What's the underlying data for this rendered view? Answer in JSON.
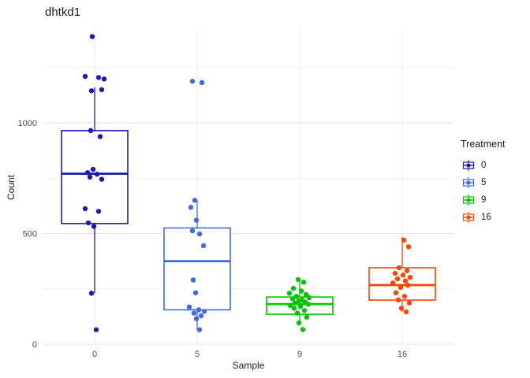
{
  "title": "dhtkd1",
  "axes": {
    "x_label": "Sample",
    "y_label": "Count"
  },
  "legend": {
    "title": "Treatment"
  },
  "colors": {
    "background": "#ffffff",
    "grid_major": "#e3e3e3",
    "grid_minor": "#ebebeb",
    "tick_text": "#4d4d4d",
    "title_text": "#1a1a1a"
  },
  "chart_data": {
    "type": "boxplot",
    "title": "dhtkd1",
    "xlabel": "Sample",
    "ylabel": "Count",
    "ylim": [
      0,
      1420
    ],
    "yticks": [
      0,
      500,
      1000
    ],
    "yticks_minor": [
      250,
      750,
      1250
    ],
    "grid": true,
    "legend_title": "Treatment",
    "legend_position": "right",
    "categories": [
      "0",
      "5",
      "9",
      "16"
    ],
    "groups": [
      {
        "label": "0",
        "color": "#1c1cb0",
        "box": {
          "whisker_low": 230,
          "q1": 545,
          "median": 770,
          "q3": 965,
          "whisker_high": 1160
        },
        "points": [
          [
            -3,
            1390
          ],
          [
            -12,
            1210
          ],
          [
            5,
            1205
          ],
          [
            12,
            1198
          ],
          [
            9,
            1150
          ],
          [
            -4,
            1145
          ],
          [
            -5,
            965
          ],
          [
            7,
            938
          ],
          [
            -2,
            790
          ],
          [
            -9,
            775
          ],
          [
            3,
            768
          ],
          [
            -6,
            755
          ],
          [
            9,
            745
          ],
          [
            -12,
            612
          ],
          [
            5,
            600
          ],
          [
            -8,
            548
          ],
          [
            -1,
            532
          ],
          [
            -4,
            230
          ],
          [
            2,
            65
          ]
        ]
      },
      {
        "label": "5",
        "color": "#4169e1",
        "box": {
          "whisker_low": 65,
          "q1": 155,
          "median": 375,
          "q3": 525,
          "whisker_high": 650
        },
        "points": [
          [
            -6,
            1188
          ],
          [
            6,
            1182
          ],
          [
            -3,
            650
          ],
          [
            -8,
            618
          ],
          [
            -1,
            560
          ],
          [
            -6,
            512
          ],
          [
            3,
            498
          ],
          [
            8,
            445
          ],
          [
            -5,
            290
          ],
          [
            -2,
            232
          ],
          [
            -10,
            168
          ],
          [
            2,
            155
          ],
          [
            9,
            148
          ],
          [
            -4,
            140
          ],
          [
            5,
            128
          ],
          [
            -1,
            115
          ],
          [
            3,
            65
          ]
        ]
      },
      {
        "label": "9",
        "color": "#00c500",
        "box": {
          "whisker_low": 96,
          "q1": 135,
          "median": 181,
          "q3": 213,
          "whisker_high": 292
        },
        "points": [
          [
            -2,
            292
          ],
          [
            5,
            280
          ],
          [
            -8,
            252
          ],
          [
            2,
            240
          ],
          [
            -13,
            230
          ],
          [
            8,
            224
          ],
          [
            -4,
            216
          ],
          [
            12,
            210
          ],
          [
            -9,
            205
          ],
          [
            3,
            200
          ],
          [
            -1,
            196
          ],
          [
            7,
            190
          ],
          [
            -6,
            186
          ],
          [
            11,
            180
          ],
          [
            -12,
            175
          ],
          [
            1,
            170
          ],
          [
            -7,
            162
          ],
          [
            6,
            152
          ],
          [
            -3,
            140
          ],
          [
            9,
            122
          ],
          [
            -1,
            96
          ],
          [
            4,
            66
          ]
        ]
      },
      {
        "label": "16",
        "color": "#ff4500",
        "box": {
          "whisker_low": 146,
          "q1": 199,
          "median": 267,
          "q3": 345,
          "whisker_high": 484
        },
        "points": [
          [
            2,
            470
          ],
          [
            8,
            440
          ],
          [
            -4,
            345
          ],
          [
            6,
            332
          ],
          [
            -9,
            320
          ],
          [
            1,
            312
          ],
          [
            10,
            302
          ],
          [
            -6,
            295
          ],
          [
            4,
            286
          ],
          [
            -12,
            276
          ],
          [
            7,
            266
          ],
          [
            -2,
            256
          ],
          [
            -8,
            232
          ],
          [
            3,
            216
          ],
          [
            -5,
            200
          ],
          [
            9,
            186
          ],
          [
            -1,
            162
          ],
          [
            5,
            146
          ]
        ]
      }
    ]
  }
}
